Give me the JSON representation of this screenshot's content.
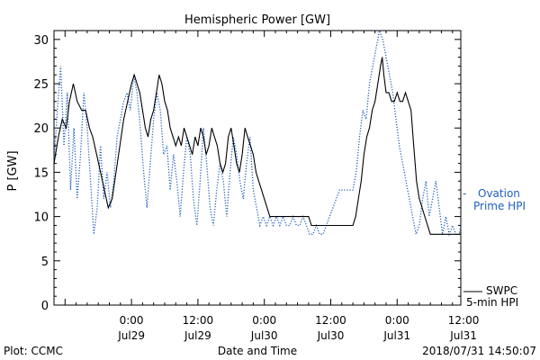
{
  "chart_data": {
    "type": "line",
    "title": "Hemispheric Power [GW]",
    "xlabel": "Date and Time",
    "ylabel": "P [GW]",
    "ylim": [
      0,
      31
    ],
    "yticks": [
      0,
      5,
      10,
      15,
      20,
      25,
      30
    ],
    "x_unit": "hours since 2018-07-28 00:00 UT",
    "xlim": [
      -14,
      59.5
    ],
    "xticks": [
      {
        "x": 0,
        "label_top": "0:00",
        "label_bottom": "Jul29"
      },
      {
        "x": 12,
        "label_top": "12:00",
        "label_bottom": "Jul29"
      },
      {
        "x": 24,
        "label_top": "0:00",
        "label_bottom": "Jul30"
      },
      {
        "x": 36,
        "label_top": "12:00",
        "label_bottom": "Jul30"
      },
      {
        "x": 48,
        "label_top": "0:00",
        "label_bottom": "Jul31"
      },
      {
        "x": 60,
        "label_top": "12:00",
        "label_bottom": "Jul31"
      }
    ],
    "series": [
      {
        "name": "SWPC 5-min HPI",
        "label_lines": [
          "SWPC",
          "5-min HPI"
        ],
        "style": "solid",
        "color": "#000000",
        "points": [
          [
            -14,
            16
          ],
          [
            -13.2,
            19
          ],
          [
            -12.5,
            21
          ],
          [
            -11.8,
            20
          ],
          [
            -11.2,
            23
          ],
          [
            -10.5,
            25
          ],
          [
            -9.8,
            23
          ],
          [
            -9,
            22
          ],
          [
            -8.3,
            22
          ],
          [
            -7.6,
            20
          ],
          [
            -7,
            19
          ],
          [
            -6.3,
            17
          ],
          [
            -5.6,
            15
          ],
          [
            -4.9,
            13
          ],
          [
            -4.2,
            11
          ],
          [
            -3.5,
            12
          ],
          [
            -2.8,
            15
          ],
          [
            -2.1,
            18
          ],
          [
            -1.4,
            21
          ],
          [
            -0.7,
            23
          ],
          [
            0,
            25
          ],
          [
            0.5,
            26
          ],
          [
            1,
            25
          ],
          [
            1.5,
            24
          ],
          [
            2,
            22
          ],
          [
            2.5,
            20
          ],
          [
            3,
            19
          ],
          [
            3.5,
            21
          ],
          [
            4,
            22
          ],
          [
            4.5,
            24
          ],
          [
            5,
            26
          ],
          [
            5.5,
            25
          ],
          [
            6,
            23
          ],
          [
            6.5,
            22
          ],
          [
            7,
            20
          ],
          [
            7.5,
            19
          ],
          [
            8,
            18
          ],
          [
            8.5,
            19
          ],
          [
            9,
            18
          ],
          [
            9.5,
            20
          ],
          [
            10,
            19
          ],
          [
            10.5,
            18
          ],
          [
            11,
            17
          ],
          [
            11.5,
            19
          ],
          [
            12,
            18
          ],
          [
            12.5,
            20
          ],
          [
            13,
            19
          ],
          [
            13.5,
            17
          ],
          [
            14,
            18
          ],
          [
            14.5,
            20
          ],
          [
            15,
            19
          ],
          [
            15.5,
            18
          ],
          [
            16,
            16
          ],
          [
            16.5,
            15
          ],
          [
            17,
            16
          ],
          [
            17.5,
            19
          ],
          [
            18,
            20
          ],
          [
            18.5,
            18
          ],
          [
            19,
            16
          ],
          [
            19.5,
            15
          ],
          [
            20,
            17
          ],
          [
            20.5,
            20
          ],
          [
            21,
            19
          ],
          [
            21.5,
            18
          ],
          [
            22,
            17
          ],
          [
            22.5,
            15
          ],
          [
            23,
            14
          ],
          [
            23.5,
            13
          ],
          [
            24,
            12
          ],
          [
            24.5,
            11
          ],
          [
            25,
            10
          ],
          [
            25.5,
            10
          ],
          [
            26,
            10
          ],
          [
            26.5,
            10
          ],
          [
            27,
            10
          ],
          [
            27.5,
            10
          ],
          [
            28,
            10
          ],
          [
            28.5,
            10
          ],
          [
            29,
            10
          ],
          [
            29.5,
            10
          ],
          [
            30,
            10
          ],
          [
            30.5,
            10
          ],
          [
            31,
            10
          ],
          [
            31.5,
            10
          ],
          [
            32,
            10
          ],
          [
            32.5,
            9
          ],
          [
            33,
            9
          ],
          [
            33.5,
            9
          ],
          [
            34,
            9
          ],
          [
            34.5,
            9
          ],
          [
            35,
            9
          ],
          [
            35.5,
            9
          ],
          [
            36,
            9
          ],
          [
            36.5,
            9
          ],
          [
            37,
            9
          ],
          [
            37.5,
            9
          ],
          [
            38,
            9
          ],
          [
            38.5,
            9
          ],
          [
            39,
            9
          ],
          [
            39.5,
            9
          ],
          [
            40,
            9
          ],
          [
            40.5,
            10
          ],
          [
            41,
            12
          ],
          [
            41.5,
            14
          ],
          [
            42,
            17
          ],
          [
            42.5,
            19
          ],
          [
            43,
            20
          ],
          [
            43.5,
            22
          ],
          [
            44,
            23
          ],
          [
            44.5,
            25
          ],
          [
            45,
            27
          ],
          [
            45.3,
            28
          ],
          [
            45.6,
            26
          ],
          [
            46,
            24
          ],
          [
            46.5,
            24
          ],
          [
            47,
            23
          ],
          [
            47.5,
            23
          ],
          [
            48,
            24
          ],
          [
            48.5,
            23
          ],
          [
            49,
            23
          ],
          [
            49.5,
            24
          ],
          [
            50,
            23
          ],
          [
            50.5,
            22
          ],
          [
            51,
            18
          ],
          [
            51.5,
            14
          ],
          [
            52,
            12
          ],
          [
            52.5,
            11
          ],
          [
            53,
            10
          ],
          [
            53.5,
            9
          ],
          [
            54,
            8
          ],
          [
            54.5,
            8
          ],
          [
            55,
            8
          ],
          [
            55.5,
            8
          ],
          [
            56,
            8
          ],
          [
            56.5,
            8
          ],
          [
            57,
            8
          ],
          [
            57.5,
            8
          ],
          [
            58,
            8
          ],
          [
            58.5,
            8
          ],
          [
            59,
            8
          ],
          [
            59.5,
            8
          ]
        ]
      },
      {
        "name": "Ovation Prime HPI",
        "label_lines": [
          "Ovation",
          "Prime HPI"
        ],
        "style": "dotted",
        "color": "#1f5fbf",
        "points": [
          [
            -14,
            16
          ],
          [
            -13.4,
            22
          ],
          [
            -12.8,
            27
          ],
          [
            -12.2,
            18
          ],
          [
            -11.6,
            24
          ],
          [
            -11,
            13
          ],
          [
            -10.4,
            20
          ],
          [
            -9.8,
            12
          ],
          [
            -9.2,
            17
          ],
          [
            -8.6,
            24
          ],
          [
            -8,
            20
          ],
          [
            -7.4,
            14
          ],
          [
            -6.8,
            8
          ],
          [
            -6.2,
            11
          ],
          [
            -5.6,
            18
          ],
          [
            -5,
            12
          ],
          [
            -4.4,
            15
          ],
          [
            -3.8,
            11
          ],
          [
            -3.2,
            14
          ],
          [
            -2.6,
            19
          ],
          [
            -2,
            21
          ],
          [
            -1.4,
            23
          ],
          [
            -0.8,
            24
          ],
          [
            -0.2,
            22
          ],
          [
            0.4,
            26
          ],
          [
            1,
            24
          ],
          [
            1.6,
            20
          ],
          [
            2.2,
            15
          ],
          [
            2.8,
            11
          ],
          [
            3.4,
            16
          ],
          [
            4,
            21
          ],
          [
            4.6,
            24
          ],
          [
            5.2,
            22
          ],
          [
            5.8,
            17
          ],
          [
            6.4,
            18
          ],
          [
            7,
            13
          ],
          [
            7.6,
            17
          ],
          [
            8.2,
            14
          ],
          [
            8.8,
            10
          ],
          [
            9.4,
            15
          ],
          [
            10,
            19
          ],
          [
            10.6,
            17
          ],
          [
            11.2,
            12
          ],
          [
            11.8,
            9
          ],
          [
            12.4,
            14
          ],
          [
            13,
            20
          ],
          [
            13.6,
            16
          ],
          [
            14.2,
            11
          ],
          [
            14.8,
            9
          ],
          [
            15.4,
            13
          ],
          [
            16,
            16
          ],
          [
            16.6,
            14
          ],
          [
            17.2,
            10
          ],
          [
            17.8,
            15
          ],
          [
            18.4,
            19
          ],
          [
            19,
            17
          ],
          [
            19.6,
            14
          ],
          [
            20.2,
            12
          ],
          [
            20.8,
            16
          ],
          [
            21.4,
            19
          ],
          [
            22,
            13
          ],
          [
            22.6,
            11
          ],
          [
            23.2,
            9
          ],
          [
            23.8,
            10
          ],
          [
            24.4,
            9
          ],
          [
            25,
            10
          ],
          [
            25.6,
            9
          ],
          [
            26.2,
            10
          ],
          [
            26.8,
            9
          ],
          [
            27.4,
            10
          ],
          [
            28,
            9
          ],
          [
            28.6,
            9
          ],
          [
            29.2,
            10
          ],
          [
            29.8,
            9
          ],
          [
            30.4,
            9
          ],
          [
            31,
            10
          ],
          [
            31.6,
            9
          ],
          [
            32.2,
            8
          ],
          [
            32.8,
            8
          ],
          [
            33.4,
            9
          ],
          [
            34,
            8
          ],
          [
            34.6,
            8
          ],
          [
            35.2,
            9
          ],
          [
            35.8,
            10
          ],
          [
            36.4,
            11
          ],
          [
            37,
            12
          ],
          [
            37.6,
            13
          ],
          [
            38.2,
            13
          ],
          [
            38.8,
            13
          ],
          [
            39.4,
            13
          ],
          [
            40,
            13
          ],
          [
            40.6,
            15
          ],
          [
            41.2,
            19
          ],
          [
            41.8,
            22
          ],
          [
            42.4,
            21
          ],
          [
            43,
            25
          ],
          [
            43.6,
            27
          ],
          [
            44.2,
            29
          ],
          [
            44.8,
            31
          ],
          [
            45.4,
            30
          ],
          [
            46,
            28
          ],
          [
            46.6,
            26
          ],
          [
            47.2,
            24
          ],
          [
            47.8,
            21
          ],
          [
            48.4,
            18
          ],
          [
            49,
            16
          ],
          [
            49.6,
            14
          ],
          [
            50.2,
            12
          ],
          [
            50.8,
            10
          ],
          [
            51.4,
            8
          ],
          [
            52,
            9
          ],
          [
            52.6,
            12
          ],
          [
            53.2,
            14
          ],
          [
            53.8,
            10
          ],
          [
            54.4,
            12
          ],
          [
            55,
            14
          ],
          [
            55.6,
            11
          ],
          [
            56.2,
            8
          ],
          [
            56.8,
            10
          ],
          [
            57.4,
            8
          ],
          [
            58,
            9
          ],
          [
            58.6,
            8
          ],
          [
            59.2,
            8
          ],
          [
            59.5,
            9
          ]
        ]
      }
    ]
  },
  "footer": {
    "left": "Plot: CCMC",
    "right": "2018/07/31 14:50:07"
  }
}
